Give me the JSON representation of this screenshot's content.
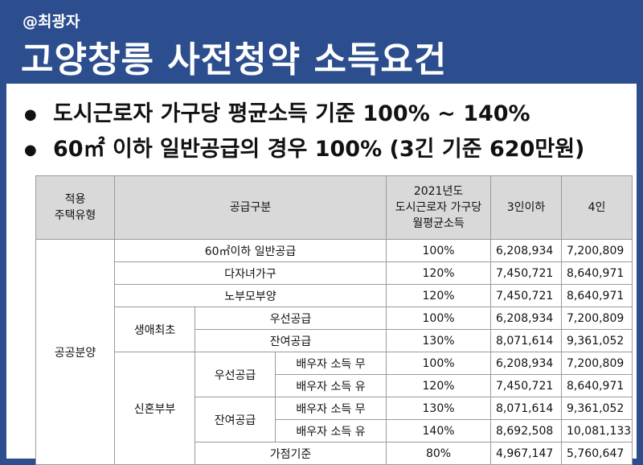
{
  "header": {
    "handle": "@최광자",
    "title": "고양창릉 사전청약 소득요건"
  },
  "bullets": [
    "도시근로자 가구당 평균소득 기준 100% ~ 140%",
    "60㎡ 이하 일반공급의 경우 100% (3긴 기준 620만원)"
  ],
  "table": {
    "headers": {
      "housing_type_line1": "적용",
      "housing_type_line2": "주택유형",
      "supply_type": "공급구분",
      "income_line1": "2021년도",
      "income_line2": "도시근로자 가구당",
      "income_line3": "월평균소득",
      "three_or_less": "3인이하",
      "four": "4인"
    },
    "group_public": "공공분양",
    "group_first_life": "생애최초",
    "group_newlywed": "신혼부부",
    "sub_priority": "우선공급",
    "sub_remaining": "잔여공급",
    "rows": {
      "general": {
        "label": "60㎡이하 일반공급",
        "pct": "100%",
        "p3": "6,208,934",
        "p4": "7,200,809"
      },
      "multichild": {
        "label": "다자녀가구",
        "pct": "120%",
        "p3": "7,450,721",
        "p4": "8,640,971"
      },
      "elderly": {
        "label": "노부모부양",
        "pct": "120%",
        "p3": "7,450,721",
        "p4": "8,640,971"
      },
      "first_priority": {
        "label": "우선공급",
        "pct": "100%",
        "p3": "6,208,934",
        "p4": "7,200,809"
      },
      "first_remaining": {
        "label": "잔여공급",
        "pct": "130%",
        "p3": "8,071,614",
        "p4": "9,361,052"
      },
      "nw_priority_no": {
        "label": "배우자 소득 무",
        "pct": "100%",
        "p3": "6,208,934",
        "p4": "7,200,809"
      },
      "nw_priority_yes": {
        "label": "배우자 소득 유",
        "pct": "120%",
        "p3": "7,450,721",
        "p4": "8,640,971"
      },
      "nw_remaining_no": {
        "label": "배우자 소득 무",
        "pct": "130%",
        "p3": "8,071,614",
        "p4": "9,361,052"
      },
      "nw_remaining_yes": {
        "label": "배우자 소득 유",
        "pct": "140%",
        "p3": "8,692,508",
        "p4": "10,081,133"
      },
      "nw_points": {
        "label": "가점기준",
        "pct": "80%",
        "p3": "4,967,147",
        "p4": "5,760,647"
      }
    }
  }
}
